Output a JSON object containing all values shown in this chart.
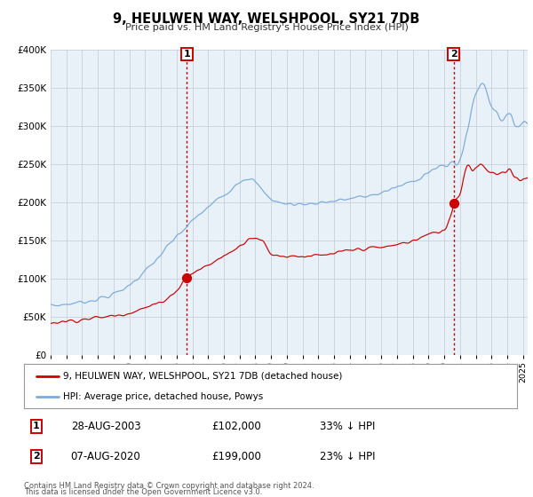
{
  "title": "9, HEULWEN WAY, WELSHPOOL, SY21 7DB",
  "subtitle": "Price paid vs. HM Land Registry's House Price Index (HPI)",
  "legend_label_red": "9, HEULWEN WAY, WELSHPOOL, SY21 7DB (detached house)",
  "legend_label_blue": "HPI: Average price, detached house, Powys",
  "annotation1_date": "28-AUG-2003",
  "annotation1_price": "£102,000",
  "annotation1_pct": "33% ↓ HPI",
  "annotation1_year": 2003.65,
  "annotation1_value": 102000,
  "annotation2_date": "07-AUG-2020",
  "annotation2_price": "£199,000",
  "annotation2_pct": "23% ↓ HPI",
  "annotation2_year": 2020.6,
  "annotation2_value": 199000,
  "footer1": "Contains HM Land Registry data © Crown copyright and database right 2024.",
  "footer2": "This data is licensed under the Open Government Licence v3.0.",
  "ylim": [
    0,
    400000
  ],
  "xlim_start": 1995.0,
  "xlim_end": 2025.3,
  "red_color": "#cc0000",
  "blue_color": "#7aabdb",
  "bg_color": "#e8f0f8",
  "plot_bg": "#ffffff",
  "grid_color": "#c8d0dc",
  "vline_color": "#cc0000"
}
